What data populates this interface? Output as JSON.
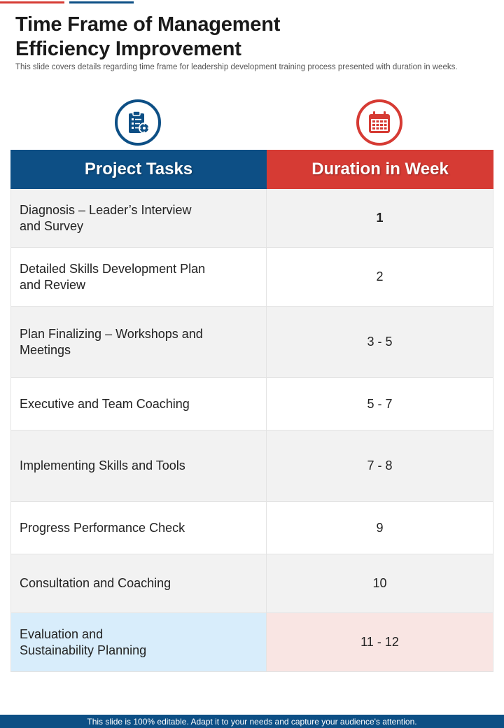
{
  "title": {
    "line1": "Time Frame of Management",
    "line2": "Efficiency Improvement"
  },
  "subtitle": "This slide covers details regarding time frame for leadership development training process presented with duration in weeks.",
  "icons": {
    "tasks": "clipboard-checklist-icon",
    "duration": "calendar-icon"
  },
  "colors": {
    "primary_blue": "#0d4f85",
    "primary_red": "#d63b34",
    "highlight_blue": "#d8edfb",
    "highlight_red": "#f9e5e3"
  },
  "table": {
    "headers": {
      "tasks": "Project Tasks",
      "duration": "Duration in Week"
    },
    "rows": [
      {
        "task": "Diagnosis – Leader’s Interview and Survey",
        "duration": "1"
      },
      {
        "task": "Detailed Skills Development Plan and Review",
        "duration": "2"
      },
      {
        "task": "Plan Finalizing – Workshops and Meetings",
        "duration": "3 - 5"
      },
      {
        "task": "Executive and Team Coaching",
        "duration": "5 - 7"
      },
      {
        "task": "Implementing Skills and Tools",
        "duration": "7 - 8"
      },
      {
        "task": "Progress Performance Check",
        "duration": "9"
      },
      {
        "task": "Consultation and Coaching",
        "duration": "10"
      },
      {
        "task": "Evaluation and Sustainability Planning",
        "duration": "11 - 12"
      }
    ]
  },
  "footer": "This slide is 100% editable. Adapt it to your needs and capture your audience's attention."
}
